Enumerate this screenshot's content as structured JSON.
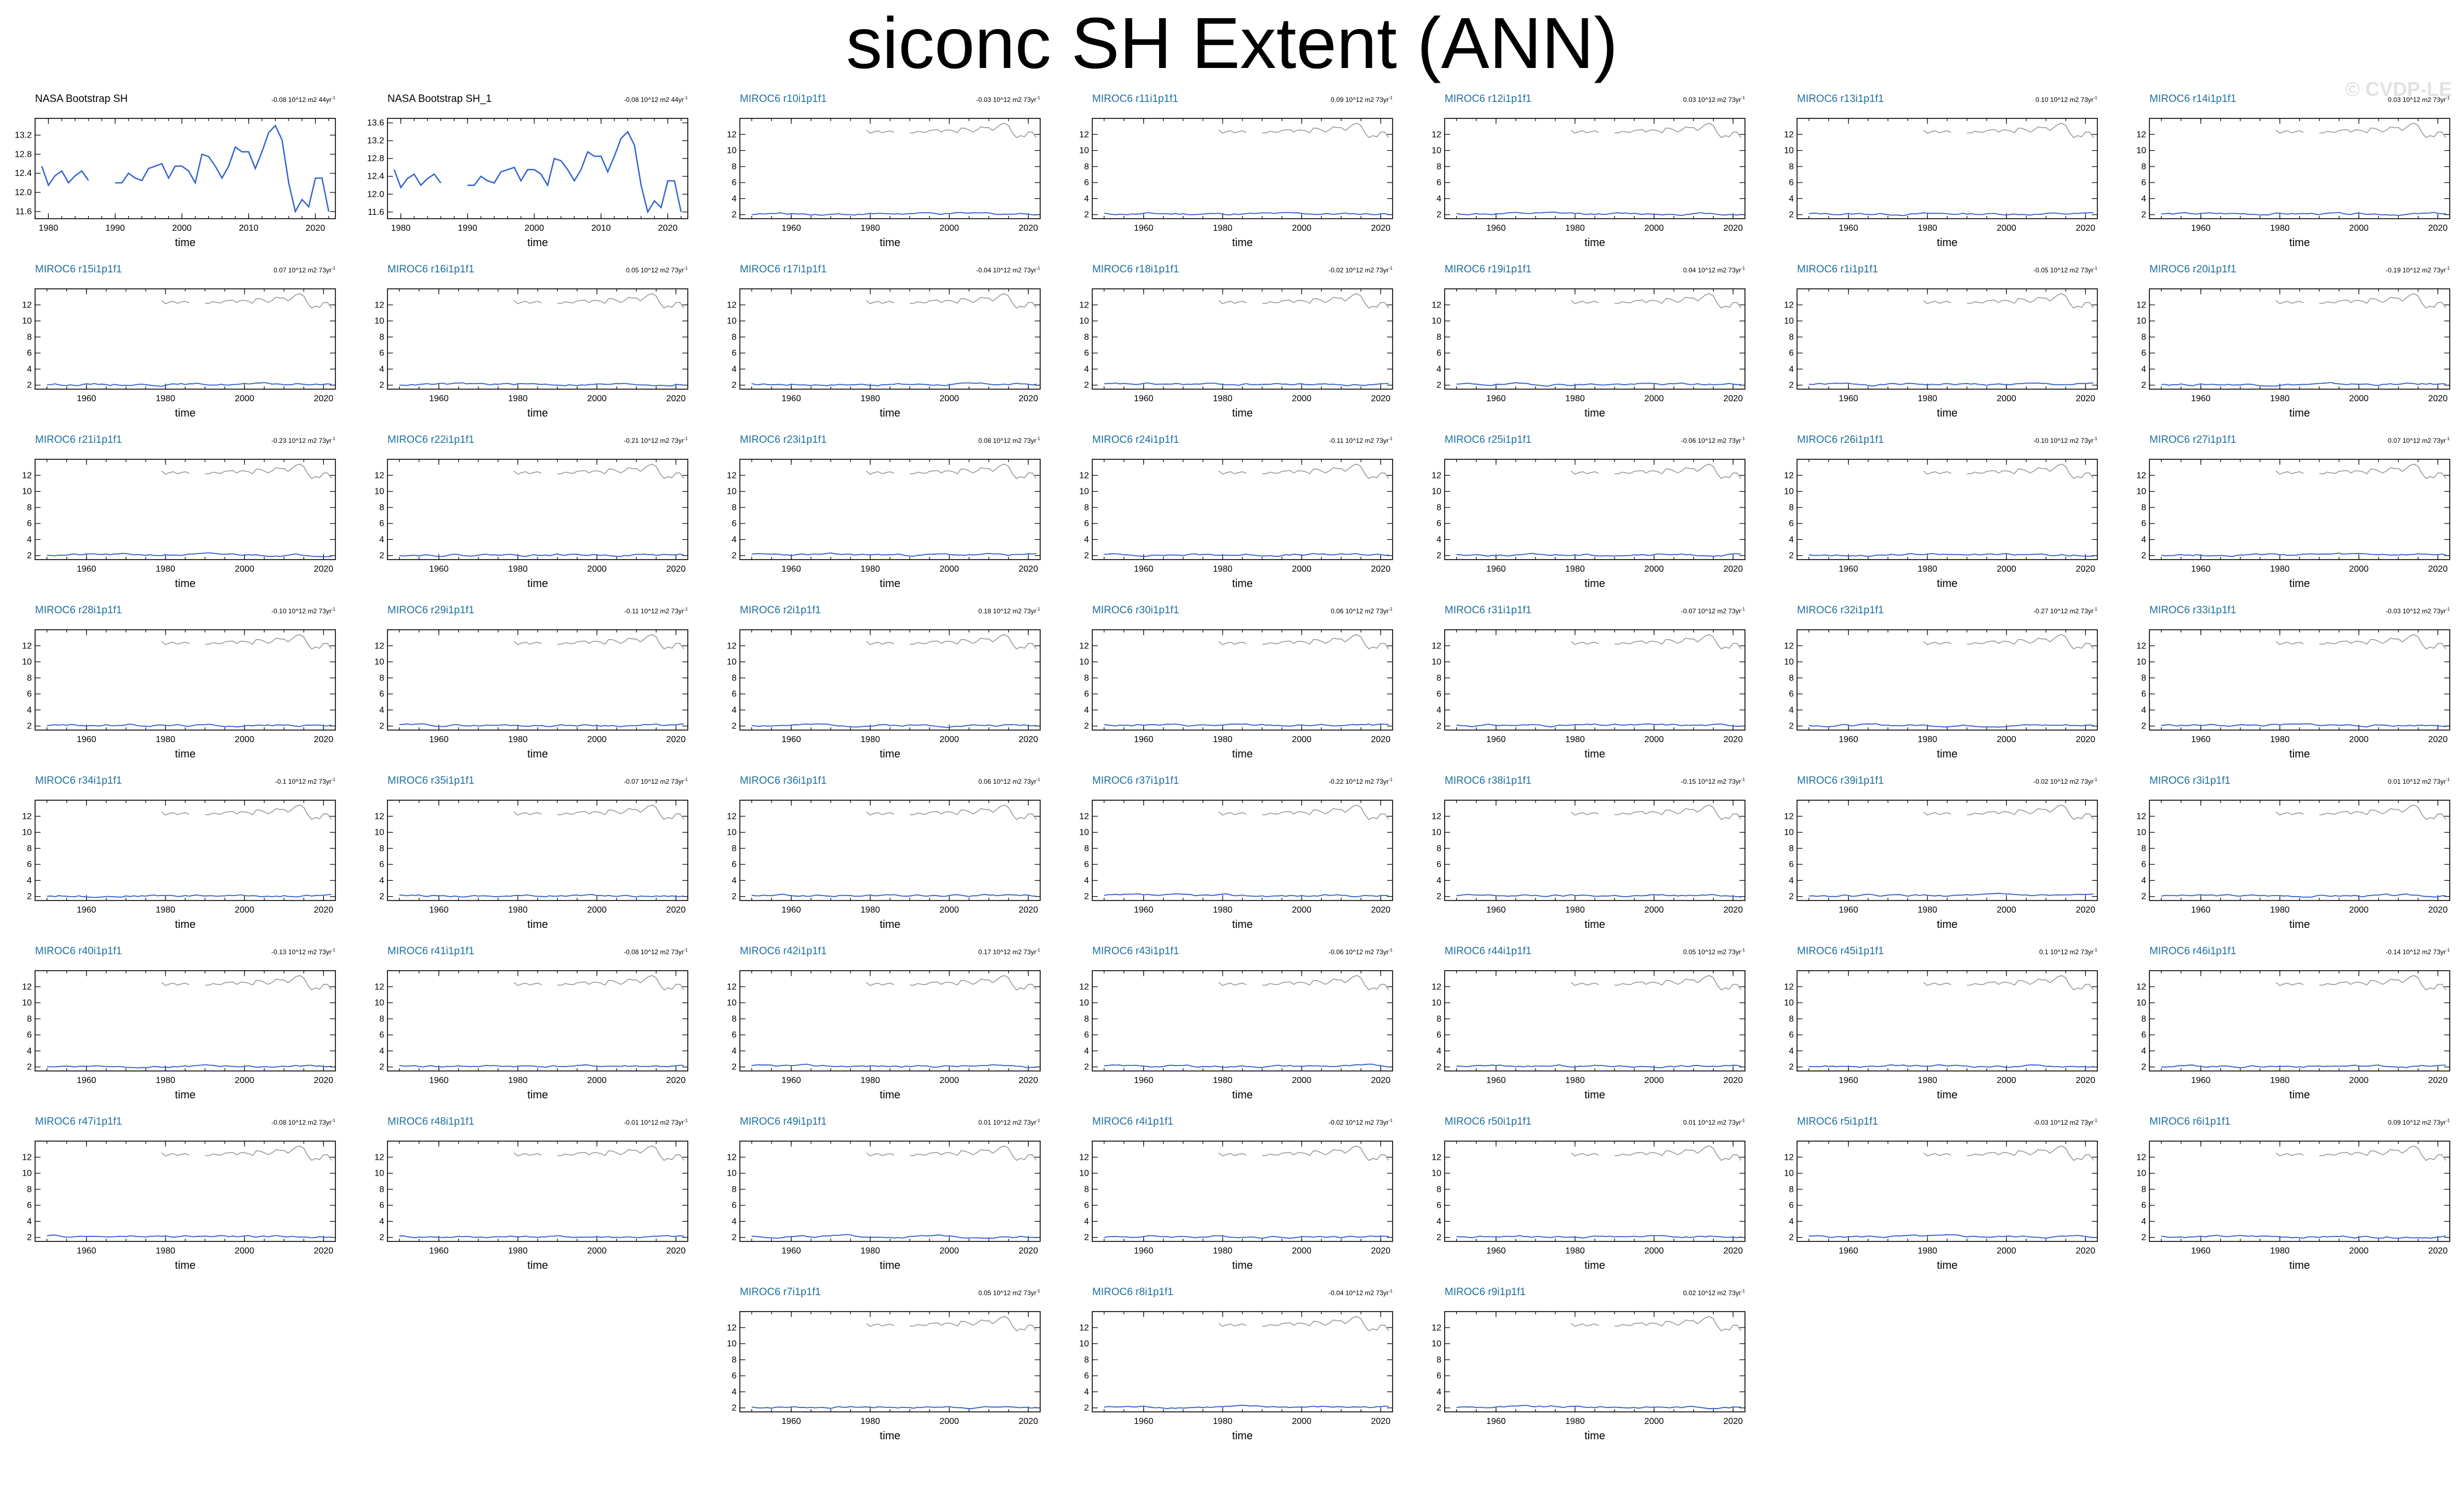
{
  "title": "siconc SH Extent (ANN)",
  "watermark": "© CVDP-LE",
  "colors": {
    "model_series": "#2f5fd0",
    "obs_overlay": "#9a9a9a",
    "model_title": "#1f6f9f",
    "obs_title": "#000000"
  },
  "chart_data": {
    "type": "line",
    "grid": false,
    "xlabel": "time",
    "overlay_note": "observations drawn in grey in each model panel",
    "obs_series": {
      "name": "NASA Bootstrap SH",
      "x": [
        1979,
        1980,
        1981,
        1982,
        1983,
        1984,
        1985,
        1986,
        1987,
        1988,
        1989,
        1990,
        1991,
        1992,
        1993,
        1994,
        1995,
        1996,
        1997,
        1998,
        1999,
        2000,
        2001,
        2002,
        2003,
        2004,
        2005,
        2006,
        2007,
        2008,
        2009,
        2010,
        2011,
        2012,
        2013,
        2014,
        2015,
        2016,
        2017,
        2018,
        2019,
        2020,
        2021,
        2022
      ],
      "y": [
        12.55,
        12.15,
        12.35,
        12.45,
        12.2,
        12.35,
        12.45,
        12.25,
        null,
        null,
        null,
        12.2,
        12.2,
        12.4,
        12.3,
        12.25,
        12.5,
        12.55,
        12.6,
        12.3,
        12.55,
        12.55,
        12.45,
        12.2,
        12.8,
        12.75,
        12.55,
        12.3,
        12.55,
        12.95,
        12.85,
        12.85,
        12.5,
        12.85,
        13.25,
        13.4,
        13.1,
        12.2,
        11.6,
        11.85,
        11.7,
        12.3,
        12.3,
        11.6
      ]
    },
    "panels": [
      {
        "title": "NASA Bootstrap SH",
        "trend": "-0.08 10^12 m2 44yr",
        "kind": "obs",
        "xlim": [
          1978,
          2023
        ],
        "xticks": [
          1980,
          1990,
          2000,
          2010,
          2020
        ],
        "ylim": [
          11.45,
          13.55
        ],
        "yticks": [
          11.6,
          12.0,
          12.4,
          12.8,
          13.2
        ]
      },
      {
        "title": "NASA Bootstrap SH_1",
        "trend": "-0.08 10^12 m2 44yr",
        "kind": "obs",
        "xlim": [
          1978,
          2023
        ],
        "xticks": [
          1980,
          1990,
          2000,
          2010,
          2020
        ],
        "ylim": [
          11.45,
          13.7
        ],
        "yticks": [
          11.6,
          12.0,
          12.4,
          12.8,
          13.2,
          13.6
        ]
      },
      {
        "title": "MIROC6 r10i1p1f1",
        "trend": "-0.03 10^12 m2 73yr",
        "kind": "model",
        "seed": 10
      },
      {
        "title": "MIROC6 r11i1p1f1",
        "trend": "0.09 10^12 m2 73yr",
        "kind": "model",
        "seed": 11
      },
      {
        "title": "MIROC6 r12i1p1f1",
        "trend": "0.03 10^12 m2 73yr",
        "kind": "model",
        "seed": 12
      },
      {
        "title": "MIROC6 r13i1p1f1",
        "trend": "0.10 10^12 m2 73yr",
        "kind": "model",
        "seed": 13
      },
      {
        "title": "MIROC6 r14i1p1f1",
        "trend": "0.03 10^12 m2 73yr",
        "kind": "model",
        "seed": 14
      },
      {
        "title": "MIROC6 r15i1p1f1",
        "trend": "0.07 10^12 m2 73yr",
        "kind": "model",
        "seed": 15
      },
      {
        "title": "MIROC6 r16i1p1f1",
        "trend": "0.05 10^12 m2 73yr",
        "kind": "model",
        "seed": 16
      },
      {
        "title": "MIROC6 r17i1p1f1",
        "trend": "-0.04 10^12 m2 73yr",
        "kind": "model",
        "seed": 17
      },
      {
        "title": "MIROC6 r18i1p1f1",
        "trend": "-0.02 10^12 m2 73yr",
        "kind": "model",
        "seed": 18
      },
      {
        "title": "MIROC6 r19i1p1f1",
        "trend": "0.04 10^12 m2 73yr",
        "kind": "model",
        "seed": 19
      },
      {
        "title": "MIROC6 r1i1p1f1",
        "trend": "-0.05 10^12 m2 73yr",
        "kind": "model",
        "seed": 1
      },
      {
        "title": "MIROC6 r20i1p1f1",
        "trend": "-0.19 10^12 m2 73yr",
        "kind": "model",
        "seed": 20
      },
      {
        "title": "MIROC6 r21i1p1f1",
        "trend": "-0.23 10^12 m2 73yr",
        "kind": "model",
        "seed": 21
      },
      {
        "title": "MIROC6 r22i1p1f1",
        "trend": "-0.21 10^12 m2 73yr",
        "kind": "model",
        "seed": 22
      },
      {
        "title": "MIROC6 r23i1p1f1",
        "trend": "0.08 10^12 m2 73yr",
        "kind": "model",
        "seed": 23
      },
      {
        "title": "MIROC6 r24i1p1f1",
        "trend": "-0.11 10^12 m2 73yr",
        "kind": "model",
        "seed": 24
      },
      {
        "title": "MIROC6 r25i1p1f1",
        "trend": "-0.06 10^12 m2 73yr",
        "kind": "model",
        "seed": 25
      },
      {
        "title": "MIROC6 r26i1p1f1",
        "trend": "-0.10 10^12 m2 73yr",
        "kind": "model",
        "seed": 26
      },
      {
        "title": "MIROC6 r27i1p1f1",
        "trend": "0.07 10^12 m2 73yr",
        "kind": "model",
        "seed": 27
      },
      {
        "title": "MIROC6 r28i1p1f1",
        "trend": "-0.10 10^12 m2 73yr",
        "kind": "model",
        "seed": 28
      },
      {
        "title": "MIROC6 r29i1p1f1",
        "trend": "-0.11 10^12 m2 73yr",
        "kind": "model",
        "seed": 29
      },
      {
        "title": "MIROC6 r2i1p1f1",
        "trend": "0.18 10^12 m2 73yr",
        "kind": "model",
        "seed": 2
      },
      {
        "title": "MIROC6 r30i1p1f1",
        "trend": "0.06 10^12 m2 73yr",
        "kind": "model",
        "seed": 30
      },
      {
        "title": "MIROC6 r31i1p1f1",
        "trend": "-0.07 10^12 m2 73yr",
        "kind": "model",
        "seed": 31
      },
      {
        "title": "MIROC6 r32i1p1f1",
        "trend": "-0.27 10^12 m2 73yr",
        "kind": "model",
        "seed": 32
      },
      {
        "title": "MIROC6 r33i1p1f1",
        "trend": "-0.03 10^12 m2 73yr",
        "kind": "model",
        "seed": 33
      },
      {
        "title": "MIROC6 r34i1p1f1",
        "trend": "-0.1 10^12 m2 73yr",
        "kind": "model",
        "seed": 34
      },
      {
        "title": "MIROC6 r35i1p1f1",
        "trend": "-0.07 10^12 m2 73yr",
        "kind": "model",
        "seed": 35
      },
      {
        "title": "MIROC6 r36i1p1f1",
        "trend": "0.06 10^12 m2 73yr",
        "kind": "model",
        "seed": 36
      },
      {
        "title": "MIROC6 r37i1p1f1",
        "trend": "-0.22 10^12 m2 73yr",
        "kind": "model",
        "seed": 37
      },
      {
        "title": "MIROC6 r38i1p1f1",
        "trend": "-0.15 10^12 m2 73yr",
        "kind": "model",
        "seed": 38
      },
      {
        "title": "MIROC6 r39i1p1f1",
        "trend": "-0.02 10^12 m2 73yr",
        "kind": "model",
        "seed": 39
      },
      {
        "title": "MIROC6 r3i1p1f1",
        "trend": "0.01 10^12 m2 73yr",
        "kind": "model",
        "seed": 3
      },
      {
        "title": "MIROC6 r40i1p1f1",
        "trend": "-0.13 10^12 m2 73yr",
        "kind": "model",
        "seed": 40
      },
      {
        "title": "MIROC6 r41i1p1f1",
        "trend": "-0.08 10^12 m2 73yr",
        "kind": "model",
        "seed": 41
      },
      {
        "title": "MIROC6 r42i1p1f1",
        "trend": "0.17 10^12 m2 73yr",
        "kind": "model",
        "seed": 42
      },
      {
        "title": "MIROC6 r43i1p1f1",
        "trend": "-0.06 10^12 m2 73yr",
        "kind": "model",
        "seed": 43
      },
      {
        "title": "MIROC6 r44i1p1f1",
        "trend": "0.05 10^12 m2 73yr",
        "kind": "model",
        "seed": 44
      },
      {
        "title": "MIROC6 r45i1p1f1",
        "trend": "0.1 10^12 m2 73yr",
        "kind": "model",
        "seed": 45
      },
      {
        "title": "MIROC6 r46i1p1f1",
        "trend": "-0.14 10^12 m2 73yr",
        "kind": "model",
        "seed": 46
      },
      {
        "title": "MIROC6 r47i1p1f1",
        "trend": "-0.08 10^12 m2 73yr",
        "kind": "model",
        "seed": 47
      },
      {
        "title": "MIROC6 r48i1p1f1",
        "trend": "-0.01 10^12 m2 73yr",
        "kind": "model",
        "seed": 48
      },
      {
        "title": "MIROC6 r49i1p1f1",
        "trend": "0.01 10^12 m2 73yr",
        "kind": "model",
        "seed": 49
      },
      {
        "title": "MIROC6 r4i1p1f1",
        "trend": "-0.02 10^12 m2 73yr",
        "kind": "model",
        "seed": 4
      },
      {
        "title": "MIROC6 r50i1p1f1",
        "trend": "0.01 10^12 m2 73yr",
        "kind": "model",
        "seed": 50
      },
      {
        "title": "MIROC6 r5i1p1f1",
        "trend": "-0.03 10^12 m2 73yr",
        "kind": "model",
        "seed": 5
      },
      {
        "title": "MIROC6 r6i1p1f1",
        "trend": "0.09 10^12 m2 73yr",
        "kind": "model",
        "seed": 6
      },
      {
        "title": "MIROC6 r7i1p1f1",
        "trend": "0.05 10^12 m2 73yr",
        "kind": "model",
        "seed": 7
      },
      {
        "title": "MIROC6 r8i1p1f1",
        "trend": "-0.04 10^12 m2 73yr",
        "kind": "model",
        "seed": 8
      },
      {
        "title": "MIROC6 r9i1p1f1",
        "trend": "0.02 10^12 m2 73yr",
        "kind": "model",
        "seed": 9
      }
    ],
    "model_axes": {
      "xlim": [
        1947,
        2023
      ],
      "xticks": [
        1960,
        1980,
        2000,
        2020
      ],
      "ylim": [
        1.5,
        14
      ],
      "yticks": [
        2,
        4,
        6,
        8,
        10,
        12
      ]
    },
    "model_base_level": 2.1
  }
}
